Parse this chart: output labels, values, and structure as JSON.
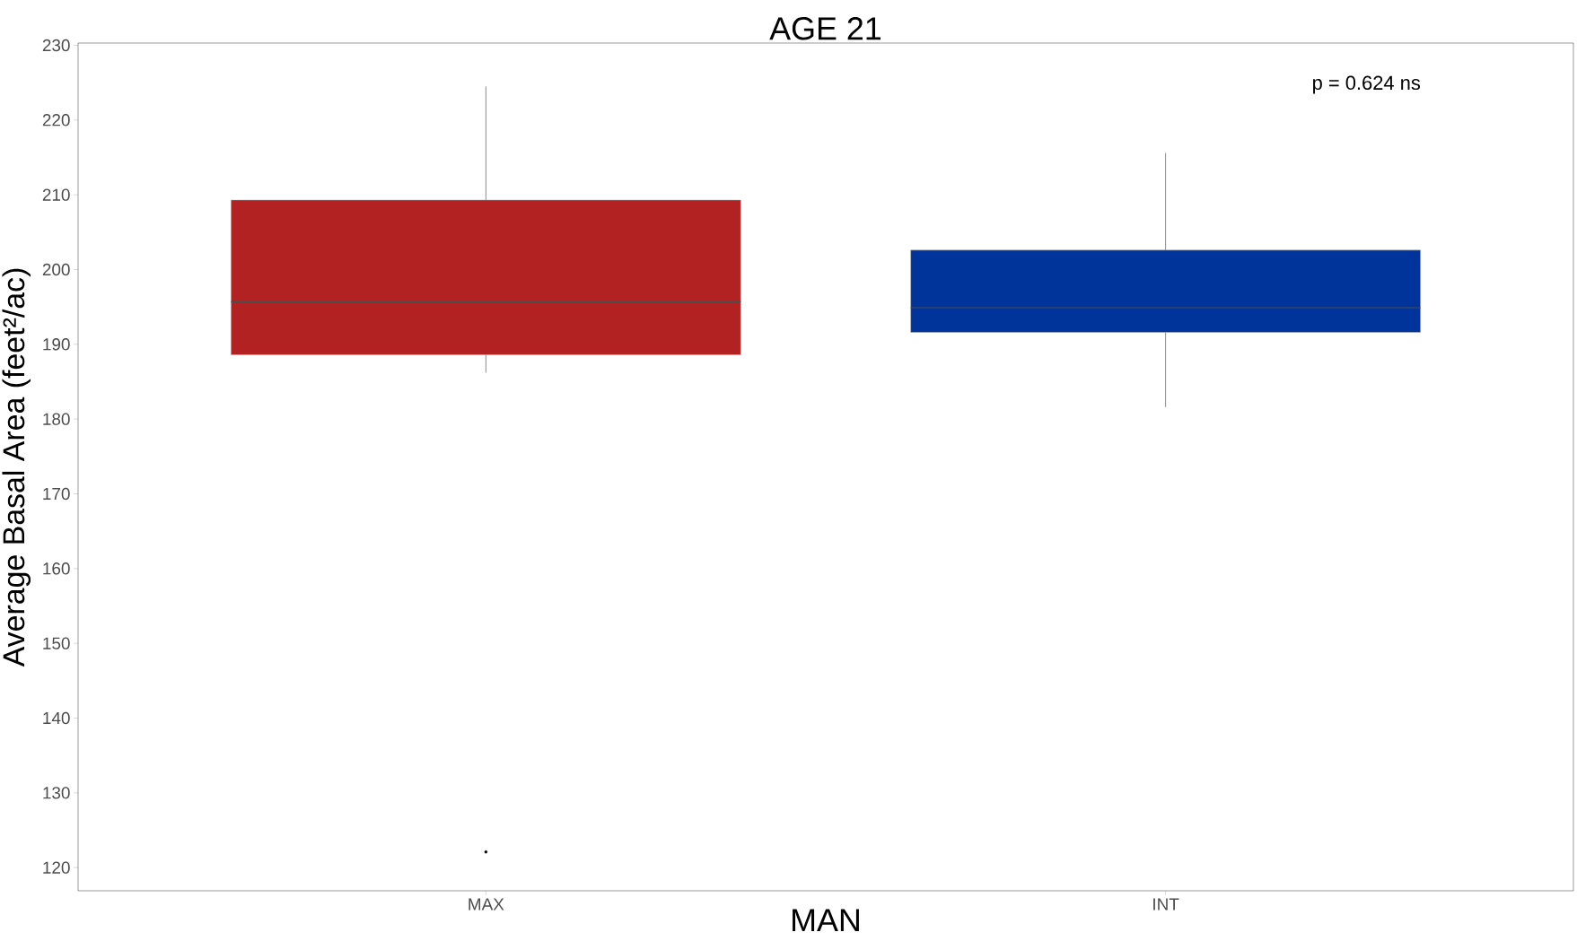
{
  "chart_data": {
    "type": "box",
    "title": "AGE 21",
    "xlabel": "MAN",
    "ylabel": "Average Basal Area (feet²/ac)",
    "categories": [
      "MAX",
      "INT"
    ],
    "colors": [
      "#b22222",
      "#00349a"
    ],
    "boxes": [
      {
        "low": 186.2,
        "q1": 188.6,
        "median": 195.7,
        "q3": 209.3,
        "high": 224.5,
        "outliers": [
          122.1
        ]
      },
      {
        "low": 181.6,
        "q1": 191.6,
        "median": 194.9,
        "q3": 202.6,
        "high": 215.6
      }
    ],
    "ylim": [
      116.9,
      230.3
    ],
    "yticks": [
      120,
      130,
      140,
      150,
      160,
      170,
      180,
      190,
      200,
      210,
      220,
      230
    ],
    "annotations": [
      "p = 0.624 ns"
    ]
  }
}
